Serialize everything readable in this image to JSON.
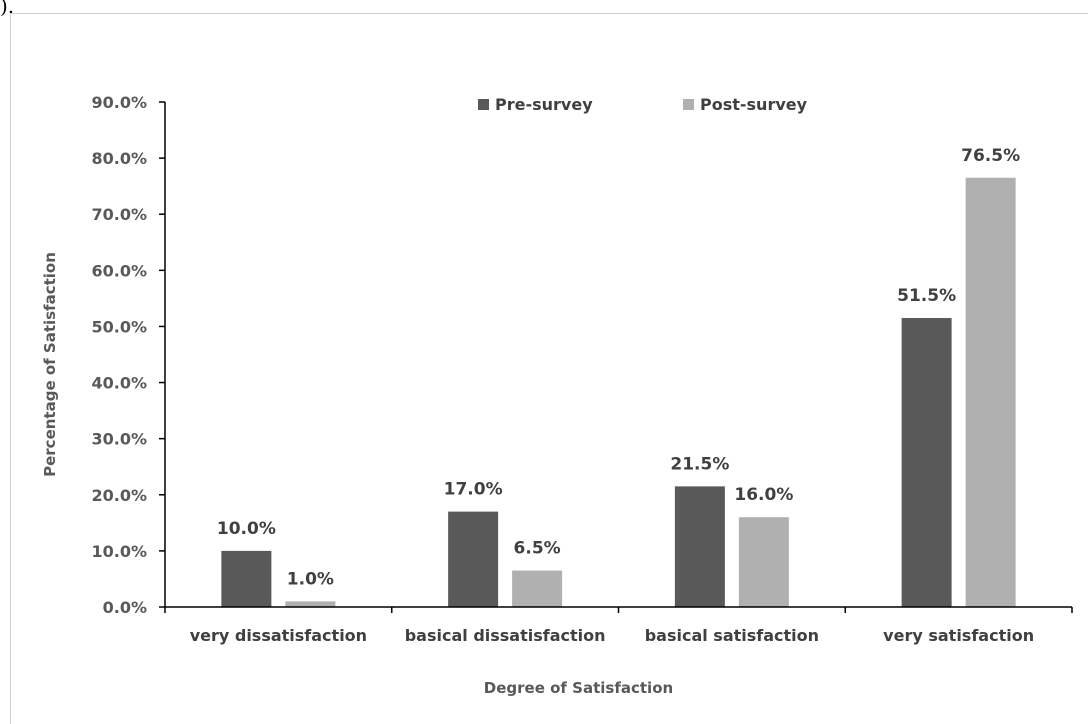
{
  "caption_fragment": ").",
  "chart_data": {
    "type": "bar",
    "xlabel": "Degree of Satisfaction",
    "ylabel": "Percentage of Satisfaction",
    "ylim": [
      0,
      90
    ],
    "yticks": [
      "0.0%",
      "10.0%",
      "20.0%",
      "30.0%",
      "40.0%",
      "50.0%",
      "60.0%",
      "70.0%",
      "80.0%",
      "90.0%"
    ],
    "categories": [
      "very dissatisfaction",
      "basical dissatisfaction",
      "basical satisfaction",
      "very satisfaction"
    ],
    "series": [
      {
        "name": "Pre-survey",
        "values": [
          10.0,
          17.0,
          21.5,
          51.5
        ],
        "labels": [
          "10.0%",
          "17.0%",
          "21.5%",
          "51.5%"
        ],
        "color": "#595959"
      },
      {
        "name": "Post-survey",
        "values": [
          1.0,
          6.5,
          16.0,
          76.5
        ],
        "labels": [
          "1.0%",
          "6.5%",
          "16.0%",
          "76.5%"
        ],
        "color": "#b0b0b0"
      }
    ],
    "legend_position": "top",
    "grid": false
  }
}
